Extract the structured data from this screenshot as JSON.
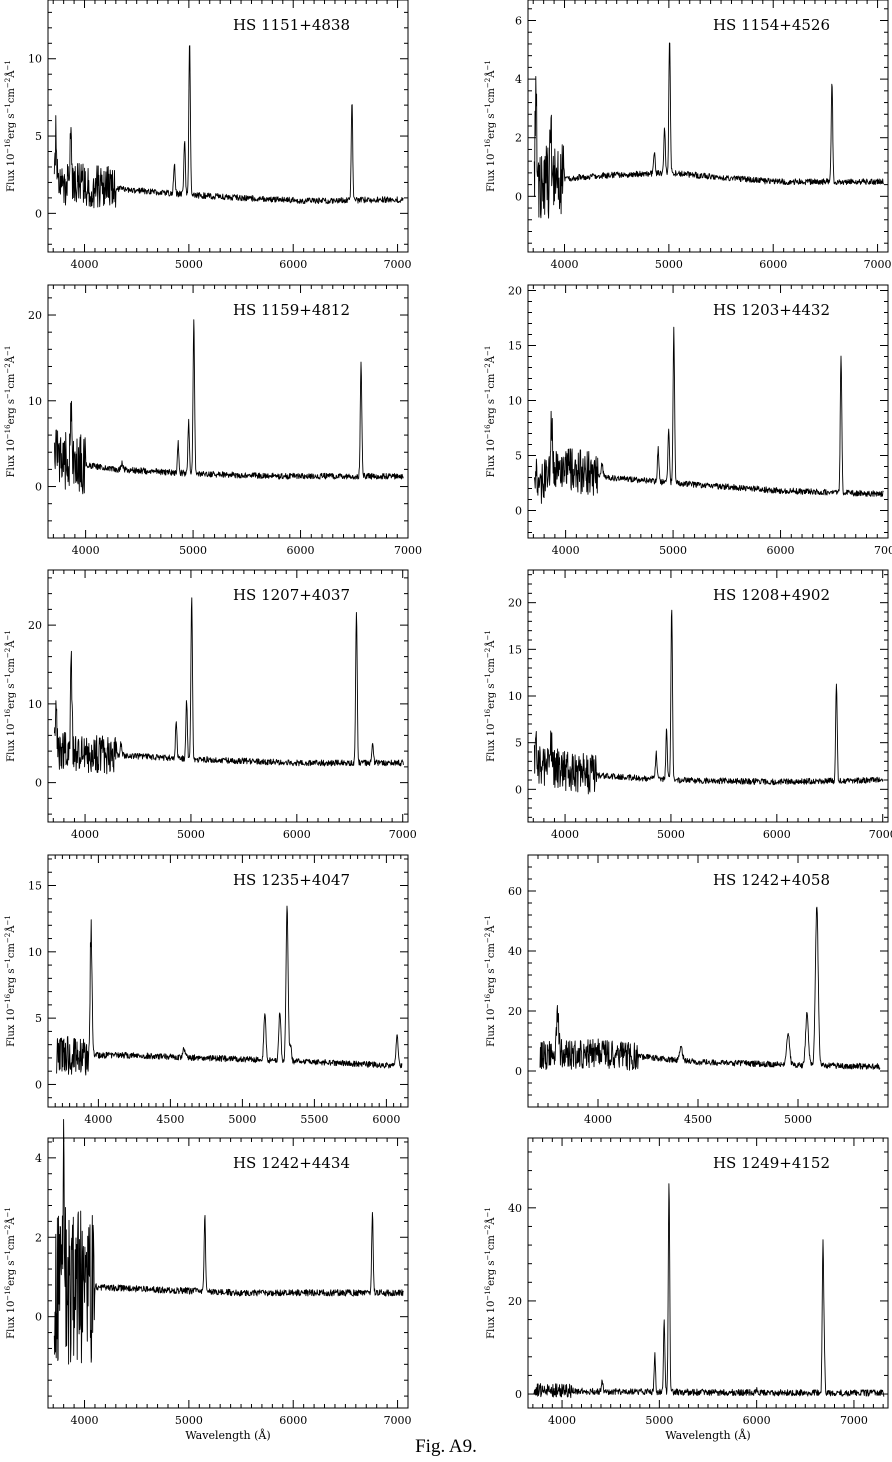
{
  "figure": {
    "caption": "Fig. A9."
  },
  "chart_data": [
    {
      "type": "line",
      "title": "HS  1151+4838",
      "xlabel": "",
      "ylabel": "Flux  10^-16 erg s^-1 cm^-2 Å^-1",
      "xlim": [
        3650,
        7100
      ],
      "ylim": [
        -2.5,
        13.8
      ],
      "xticks": [
        4000,
        5000,
        6000,
        7000
      ],
      "yticks": [
        0,
        5,
        10
      ],
      "continuum": [
        [
          3730,
          2.0
        ],
        [
          4300,
          1.6
        ],
        [
          5000,
          1.2
        ],
        [
          5500,
          1.0
        ],
        [
          6200,
          0.8
        ],
        [
          7000,
          0.9
        ]
      ],
      "noise_until": 4300,
      "noise_amp": 1.4,
      "lines": [
        [
          3727,
          3.5
        ],
        [
          3869,
          4.0
        ],
        [
          4861,
          2.0
        ],
        [
          4959,
          3.5
        ],
        [
          5007,
          10.0
        ],
        [
          6563,
          6.5
        ]
      ]
    },
    {
      "type": "line",
      "title": "HS  1154+4526",
      "xlabel": "",
      "ylabel": "Flux  10^-16 erg s^-1 cm^-2 Å^-1",
      "xlim": [
        3650,
        7100
      ],
      "ylim": [
        -1.9,
        6.7
      ],
      "xticks": [
        4000,
        5000,
        6000,
        7000
      ],
      "yticks": [
        0,
        2,
        4,
        6
      ],
      "continuum": [
        [
          3730,
          0.5
        ],
        [
          4300,
          0.7
        ],
        [
          5000,
          0.8
        ],
        [
          6000,
          0.5
        ],
        [
          7000,
          0.5
        ]
      ],
      "noise_until": 4000,
      "noise_amp": 1.3,
      "lines": [
        [
          3727,
          3.5
        ],
        [
          3869,
          1.2
        ],
        [
          4861,
          0.7
        ],
        [
          4959,
          1.5
        ],
        [
          5007,
          4.6
        ],
        [
          6563,
          3.4
        ]
      ]
    },
    {
      "type": "line",
      "title": "HS  1159+4812",
      "xlabel": "",
      "ylabel": "Flux  10^-16 erg s^-1 cm^-2 Å^-1",
      "xlim": [
        3650,
        7000
      ],
      "ylim": [
        -6,
        23.5
      ],
      "xticks": [
        4000,
        5000,
        6000,
        7000
      ],
      "yticks": [
        0,
        10,
        20
      ],
      "continuum": [
        [
          3730,
          3.0
        ],
        [
          4300,
          2.0
        ],
        [
          5000,
          1.5
        ],
        [
          5800,
          1.2
        ],
        [
          7000,
          1.2
        ]
      ],
      "noise_until": 4000,
      "noise_amp": 3.5,
      "lines": [
        [
          3727,
          5.0
        ],
        [
          3869,
          7.0
        ],
        [
          4340,
          0.8
        ],
        [
          4861,
          3.5
        ],
        [
          4959,
          6.0
        ],
        [
          5007,
          18.0
        ],
        [
          6563,
          13.0
        ]
      ]
    },
    {
      "type": "line",
      "title": "HS  1203+4432",
      "xlabel": "",
      "ylabel": "Flux  10^-16 erg s^-1 cm^-2 Å^-1",
      "xlim": [
        3650,
        7000
      ],
      "ylim": [
        -2.5,
        20.5
      ],
      "xticks": [
        4000,
        5000,
        6000,
        7000
      ],
      "yticks": [
        0,
        5,
        10,
        15,
        20
      ],
      "continuum": [
        [
          3730,
          1.5
        ],
        [
          3900,
          4.0
        ],
        [
          4400,
          3.0
        ],
        [
          5000,
          2.5
        ],
        [
          6000,
          1.8
        ],
        [
          7000,
          1.5
        ]
      ],
      "noise_until": 4300,
      "noise_amp": 2.0,
      "lines": [
        [
          3727,
          3.5
        ],
        [
          3869,
          5.0
        ],
        [
          4340,
          1.2
        ],
        [
          4861,
          3.0
        ],
        [
          4959,
          5.0
        ],
        [
          5007,
          14.0
        ],
        [
          6563,
          12.5
        ]
      ]
    },
    {
      "type": "line",
      "title": "HS  1207+4037",
      "xlabel": "",
      "ylabel": "Flux  10^-16 erg s^-1 cm^-2 Å^-1",
      "xlim": [
        3650,
        7050
      ],
      "ylim": [
        -5,
        27
      ],
      "xticks": [
        4000,
        5000,
        6000,
        7000
      ],
      "yticks": [
        0,
        10,
        20
      ],
      "continuum": [
        [
          3730,
          4.0
        ],
        [
          4300,
          3.5
        ],
        [
          5000,
          3.0
        ],
        [
          6000,
          2.5
        ],
        [
          7000,
          2.5
        ]
      ],
      "noise_until": 4300,
      "noise_amp": 2.5,
      "lines": [
        [
          3727,
          5.0
        ],
        [
          3869,
          13.0
        ],
        [
          4340,
          1.5
        ],
        [
          4861,
          5.0
        ],
        [
          4959,
          7.5
        ],
        [
          5007,
          20.5
        ],
        [
          6563,
          19.5
        ],
        [
          6716,
          2.5
        ]
      ]
    },
    {
      "type": "line",
      "title": "HS  1208+4902",
      "xlabel": "",
      "ylabel": "Flux  10^-16 erg s^-1 cm^-2 Å^-1",
      "xlim": [
        3650,
        7050
      ],
      "ylim": [
        -3.5,
        23.5
      ],
      "xticks": [
        4000,
        5000,
        6000,
        7000
      ],
      "yticks": [
        0,
        5,
        10,
        15,
        20
      ],
      "continuum": [
        [
          3730,
          2.5
        ],
        [
          4300,
          1.5
        ],
        [
          5000,
          1.0
        ],
        [
          6000,
          0.8
        ],
        [
          7000,
          1.0
        ]
      ],
      "noise_until": 4300,
      "noise_amp": 2.2,
      "lines": [
        [
          3727,
          3.0
        ],
        [
          3869,
          2.5
        ],
        [
          4861,
          3.0
        ],
        [
          4959,
          5.5
        ],
        [
          5007,
          18.5
        ],
        [
          6563,
          10.5
        ]
      ]
    },
    {
      "type": "line",
      "title": "HS  1235+4047",
      "xlabel": "",
      "ylabel": "Flux  10^-16 erg s^-1 cm^-2 Å^-1",
      "xlim": [
        3650,
        6150
      ],
      "ylim": [
        -1.7,
        17.3
      ],
      "xticks": [
        4000,
        4500,
        5000,
        5500,
        6000
      ],
      "yticks": [
        0,
        5,
        10,
        15
      ],
      "continuum": [
        [
          3700,
          2.2
        ],
        [
          4200,
          2.2
        ],
        [
          5000,
          1.9
        ],
        [
          5500,
          1.7
        ],
        [
          6100,
          1.4
        ]
      ],
      "noise_until": 3950,
      "noise_amp": 1.5,
      "lines": [
        [
          3949,
          9.0
        ],
        [
          4593,
          0.8
        ],
        [
          5156,
          3.5
        ],
        [
          5260,
          3.8
        ],
        [
          5310,
          11.8
        ],
        [
          5333,
          1.2
        ],
        [
          6074,
          2.4
        ]
      ]
    },
    {
      "type": "line",
      "title": "HS  1242+4058",
      "xlabel": "",
      "ylabel": "Flux  10^-16 erg s^-1 cm^-2 Å^-1",
      "xlim": [
        3650,
        5450
      ],
      "ylim": [
        -12,
        72
      ],
      "xticks": [
        4000,
        4500,
        5000
      ],
      "yticks": [
        0,
        20,
        40,
        60
      ],
      "continuum": [
        [
          3700,
          5.0
        ],
        [
          4000,
          6.0
        ],
        [
          4500,
          3.0
        ],
        [
          5000,
          2.0
        ],
        [
          5400,
          1.5
        ]
      ],
      "noise_until": 4200,
      "noise_amp": 5.0,
      "lines": [
        [
          3798,
          12.0
        ],
        [
          4415,
          4.0
        ],
        [
          4951,
          11.0
        ],
        [
          5045,
          17.0
        ],
        [
          5094,
          53.0
        ]
      ]
    },
    {
      "type": "line",
      "title": "HS  1242+4434",
      "xlabel": "Wavelength (Å)",
      "ylabel": "Flux  10^-16 erg s^-1 cm^-2 Å^-1",
      "xlim": [
        3650,
        7100
      ],
      "ylim": [
        -2.3,
        4.5
      ],
      "xticks": [
        4000,
        5000,
        6000,
        7000
      ],
      "yticks": [
        0,
        2,
        4
      ],
      "continuum": [
        [
          3730,
          0.8
        ],
        [
          4500,
          0.7
        ],
        [
          5500,
          0.6
        ],
        [
          7000,
          0.6
        ]
      ],
      "noise_until": 4100,
      "noise_amp": 2.0,
      "lines": [
        [
          3800,
          2.8
        ],
        [
          5153,
          1.9
        ],
        [
          6759,
          2.0
        ]
      ]
    },
    {
      "type": "line",
      "title": "HS  1249+4152",
      "xlabel": "Wavelength (Å)",
      "ylabel": "Flux  10^-16 erg s^-1 cm^-2 Å^-1",
      "xlim": [
        3650,
        7350
      ],
      "ylim": [
        -3,
        55
      ],
      "xticks": [
        4000,
        5000,
        6000,
        7000
      ],
      "yticks": [
        0,
        20,
        40
      ],
      "continuum": [
        [
          3700,
          0.8
        ],
        [
          4500,
          0.5
        ],
        [
          6000,
          0.3
        ],
        [
          7300,
          0.2
        ]
      ],
      "noise_until": 4100,
      "noise_amp": 1.5,
      "lines": [
        [
          4413,
          2.5
        ],
        [
          4953,
          8.0
        ],
        [
          5050,
          15.5
        ],
        [
          5099,
          45.5
        ],
        [
          6000,
          0.8
        ],
        [
          6681,
          30.5
        ],
        [
          6694,
          9.0
        ]
      ]
    }
  ]
}
